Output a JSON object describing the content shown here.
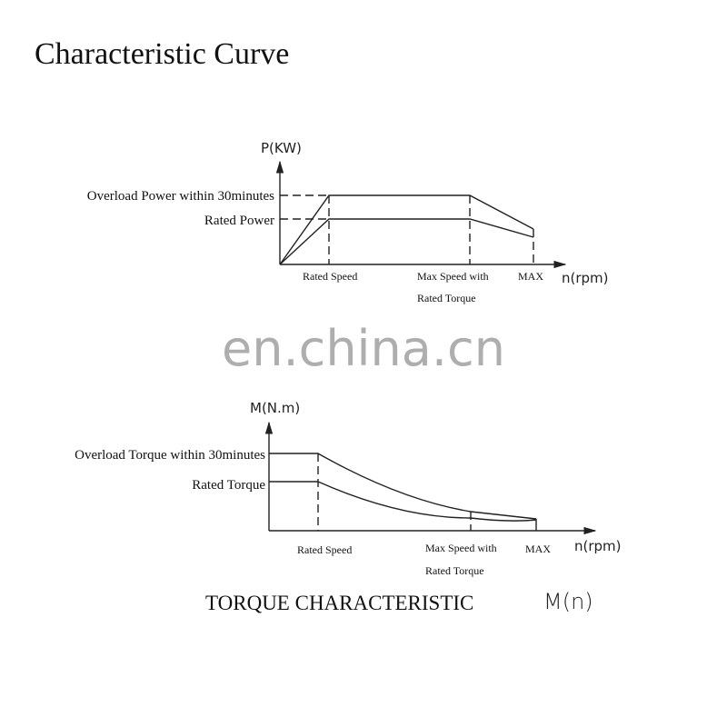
{
  "title": "Characteristic Curve",
  "watermark": "en.china.cn",
  "power_chart": {
    "y_axis_label": "P(KW)",
    "x_axis_label": "n(rpm)",
    "overload_label": "Overload Power within 30minutes",
    "rated_label": "Rated Power",
    "x_marks": [
      "Rated Speed",
      "Max Speed with",
      "Rated Torque",
      "MAX"
    ]
  },
  "torque_chart": {
    "y_axis_label": "M(N.m)",
    "x_axis_label": "n(rpm)",
    "overload_label": "Overload Torque within 30minutes",
    "rated_label": "Rated Torque",
    "x_marks": [
      "Rated Speed",
      "Max Speed with",
      "Rated Torque",
      "MAX"
    ],
    "caption": "TORQUE CHARACTERISTIC",
    "caption_symbol": "M(n)"
  },
  "colors": {
    "line": "#222222",
    "watermark": "#9a9a9a"
  }
}
